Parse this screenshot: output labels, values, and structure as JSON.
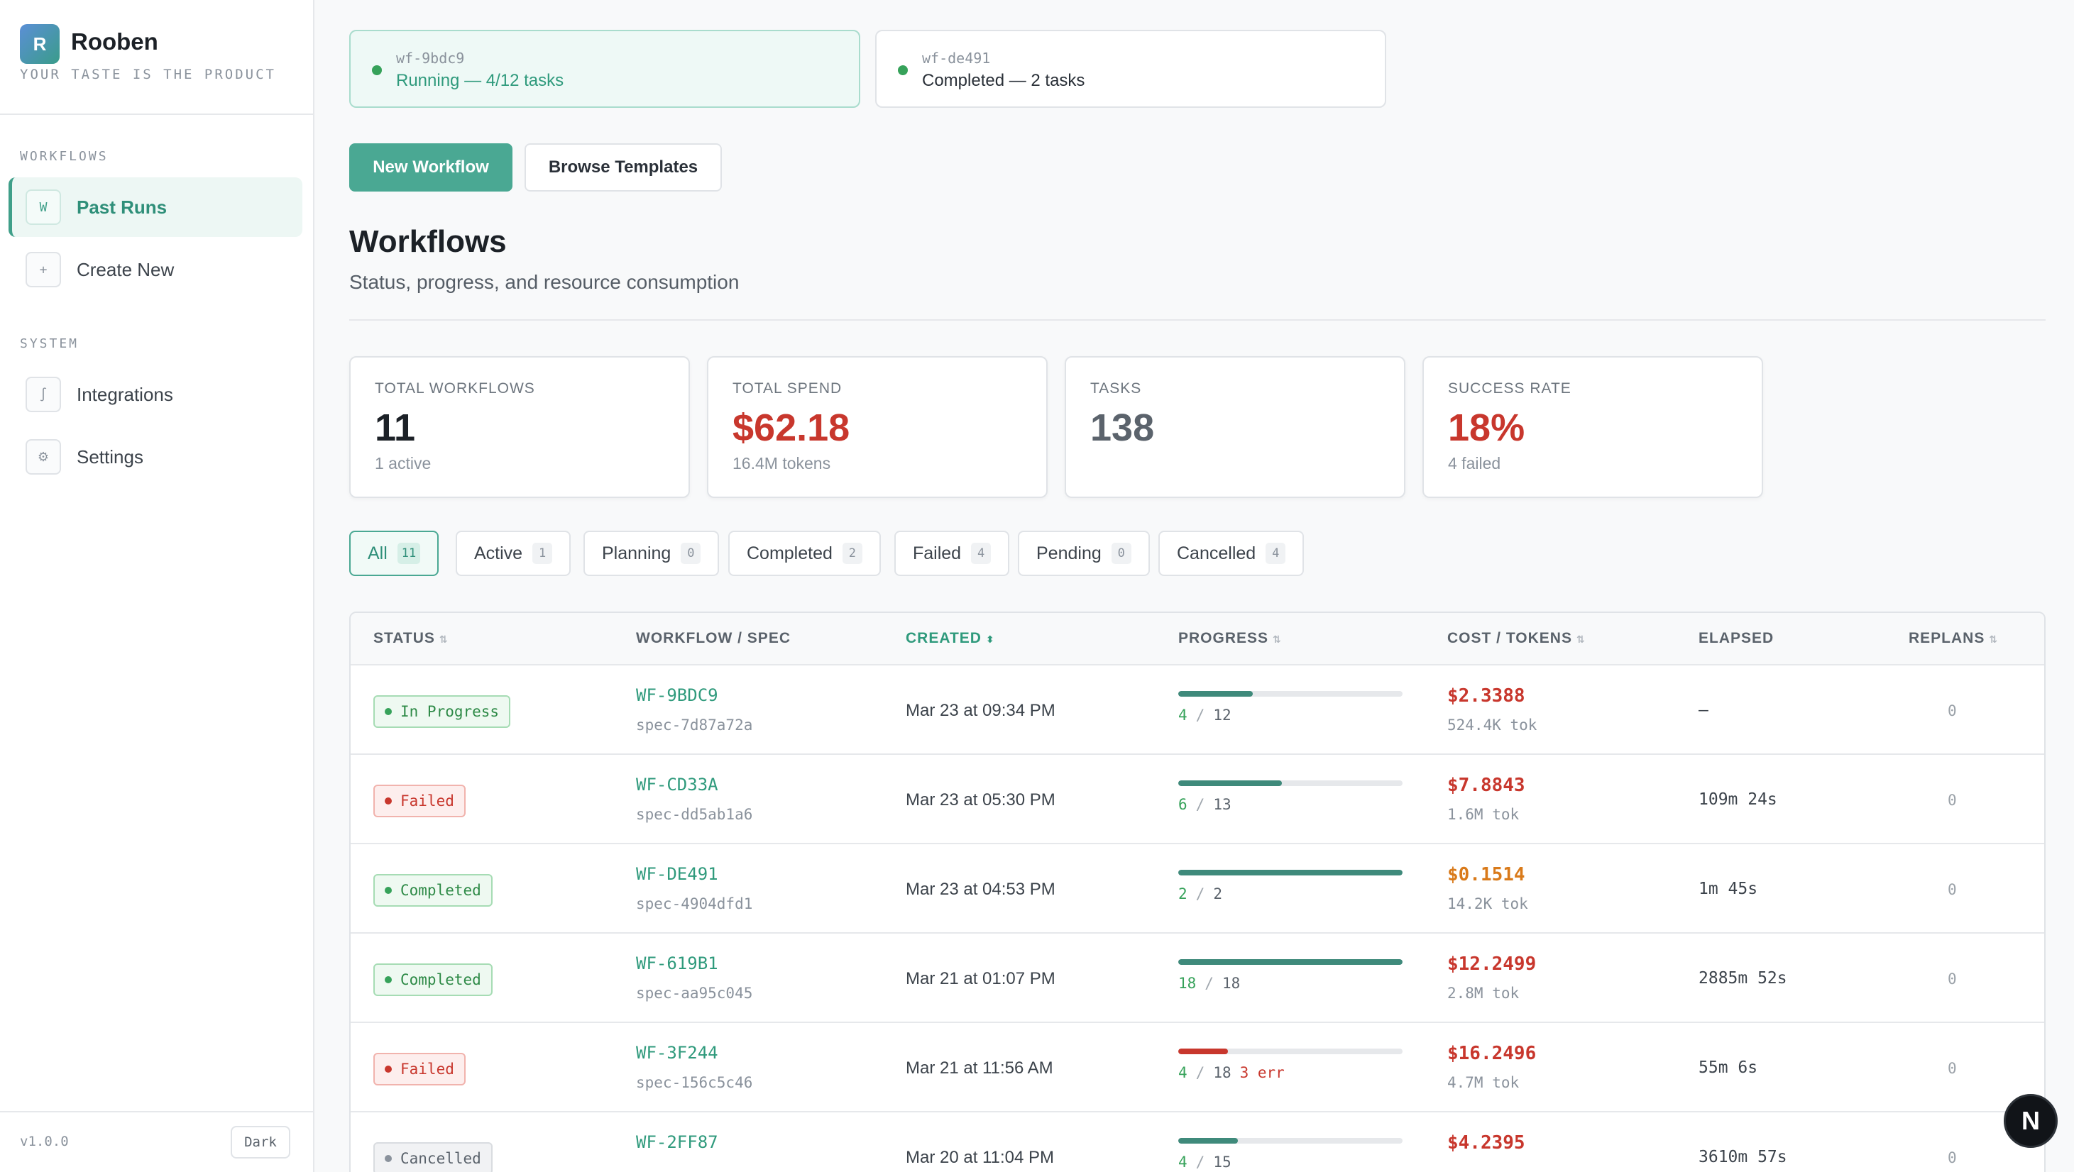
{
  "brand": {
    "logo_letter": "R",
    "name": "Rooben",
    "tagline": "YOUR TASTE IS THE PRODUCT"
  },
  "sidebar": {
    "sections": [
      {
        "title": "WORKFLOWS",
        "items": [
          {
            "icon": "W",
            "label": "Past Runs",
            "active": true
          },
          {
            "icon": "+",
            "label": "Create New",
            "active": false
          }
        ]
      },
      {
        "title": "SYSTEM",
        "items": [
          {
            "icon": "∫",
            "label": "Integrations",
            "active": false
          },
          {
            "icon": "⚙",
            "label": "Settings",
            "active": false
          }
        ]
      }
    ],
    "version": "v1.0.0",
    "theme_toggle": "Dark"
  },
  "active_runs": [
    {
      "id": "wf-9bdc9",
      "status": "Running — 4/12 tasks",
      "state": "running"
    },
    {
      "id": "wf-de491",
      "status": "Completed — 2 tasks",
      "state": "completed"
    }
  ],
  "actions": {
    "new_workflow": "New Workflow",
    "browse_templates": "Browse Templates"
  },
  "page": {
    "title": "Workflows",
    "subtitle": "Status, progress, and resource consumption"
  },
  "stats": [
    {
      "label": "TOTAL WORKFLOWS",
      "value": "11",
      "sub": "1 active",
      "tone": "dark"
    },
    {
      "label": "TOTAL SPEND",
      "value": "$62.18",
      "sub": "16.4M tokens",
      "tone": "red"
    },
    {
      "label": "TASKS",
      "value": "138",
      "sub": "",
      "tone": "gray"
    },
    {
      "label": "SUCCESS RATE",
      "value": "18%",
      "sub": "4 failed",
      "tone": "red"
    }
  ],
  "filters": [
    {
      "label": "All",
      "count": "11",
      "active": true
    },
    {
      "label": "Active",
      "count": "1",
      "active": false
    },
    {
      "label": "Planning",
      "count": "0",
      "active": false
    },
    {
      "label": "Completed",
      "count": "2",
      "active": false
    },
    {
      "label": "Failed",
      "count": "4",
      "active": false
    },
    {
      "label": "Pending",
      "count": "0",
      "active": false
    },
    {
      "label": "Cancelled",
      "count": "4",
      "active": false
    }
  ],
  "table": {
    "columns": [
      "STATUS",
      "WORKFLOW / SPEC",
      "CREATED",
      "PROGRESS",
      "COST / TOKENS",
      "ELAPSED",
      "REPLANS"
    ],
    "sort_indicator": "⇅",
    "sorted_indicator": "⬍",
    "rows": [
      {
        "status": "In Progress",
        "state": "progress",
        "id": "WF-9BDC9",
        "spec": "spec-7d87a72a",
        "created": "Mar 23 at 09:34 PM",
        "done": 4,
        "total": 12,
        "errors": "",
        "cost": "$2.3388",
        "cost_tone": "red",
        "tokens": "524.4K tok",
        "elapsed": "—",
        "replans": "0"
      },
      {
        "status": "Failed",
        "state": "failed",
        "id": "WF-CD33A",
        "spec": "spec-dd5ab1a6",
        "created": "Mar 23 at 05:30 PM",
        "done": 6,
        "total": 13,
        "errors": "",
        "cost": "$7.8843",
        "cost_tone": "red",
        "tokens": "1.6M tok",
        "elapsed": "109m 24s",
        "replans": "0"
      },
      {
        "status": "Completed",
        "state": "completed",
        "id": "WF-DE491",
        "spec": "spec-4904dfd1",
        "created": "Mar 23 at 04:53 PM",
        "done": 2,
        "total": 2,
        "errors": "",
        "cost": "$0.1514",
        "cost_tone": "amber",
        "tokens": "14.2K tok",
        "elapsed": "1m 45s",
        "replans": "0"
      },
      {
        "status": "Completed",
        "state": "completed",
        "id": "WF-619B1",
        "spec": "spec-aa95c045",
        "created": "Mar 21 at 01:07 PM",
        "done": 18,
        "total": 18,
        "errors": "",
        "cost": "$12.2499",
        "cost_tone": "red",
        "tokens": "2.8M tok",
        "elapsed": "2885m 52s",
        "replans": "0"
      },
      {
        "status": "Failed",
        "state": "failed",
        "id": "WF-3F244",
        "spec": "spec-156c5c46",
        "created": "Mar 21 at 11:56 AM",
        "done": 4,
        "total": 18,
        "errors": "3 err",
        "cost": "$16.2496",
        "cost_tone": "red",
        "tokens": "4.7M tok",
        "elapsed": "55m 6s",
        "replans": "0"
      },
      {
        "status": "Cancelled",
        "state": "cancelled",
        "id": "WF-2FF87",
        "spec": "",
        "created": "Mar 20 at 11:04 PM",
        "done": 4,
        "total": 15,
        "errors": "",
        "cost": "$4.2395",
        "cost_tone": "red",
        "tokens": "",
        "elapsed": "3610m 57s",
        "replans": "0"
      }
    ]
  },
  "fab": {
    "label": "N"
  }
}
